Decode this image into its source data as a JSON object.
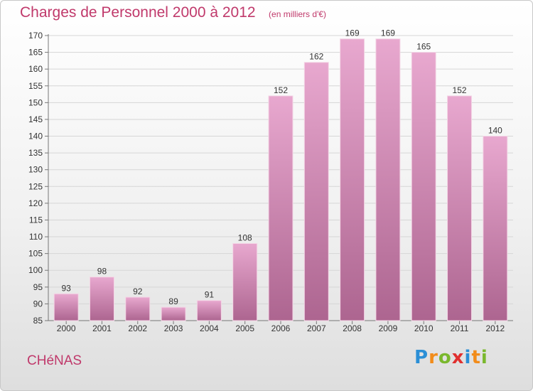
{
  "header": {
    "title": "Charges de Personnel 2000 à 2012",
    "unit": "(en milliers d'€)"
  },
  "commune": "CHéNAS",
  "logo": {
    "letters": [
      "P",
      "r",
      "o",
      "x",
      "i",
      "t",
      "i"
    ],
    "colors": [
      "#2b8fd6",
      "#f28c1a",
      "#7ab82d",
      "#e0302f",
      "#2b8fd6",
      "#f28c1a",
      "#7ab82d"
    ]
  },
  "chart_data": {
    "type": "bar",
    "title": "Charges de Personnel 2000 à 2012",
    "subtitle": "(en milliers d'€)",
    "categories": [
      "2000",
      "2001",
      "2002",
      "2003",
      "2004",
      "2005",
      "2006",
      "2007",
      "2008",
      "2009",
      "2010",
      "2011",
      "2012"
    ],
    "values": [
      93,
      98,
      92,
      89,
      91,
      108,
      152,
      162,
      169,
      169,
      165,
      152,
      140
    ],
    "ylim": [
      85,
      170
    ],
    "yticks": [
      85,
      90,
      95,
      100,
      105,
      110,
      115,
      120,
      125,
      130,
      135,
      140,
      145,
      150,
      155,
      160,
      165,
      170
    ],
    "grid": true,
    "colors": {
      "bar_top": "#e8a8cf",
      "bar_bottom": "#ad6590",
      "grid": "#d6d6d6",
      "text": "#333333"
    }
  }
}
